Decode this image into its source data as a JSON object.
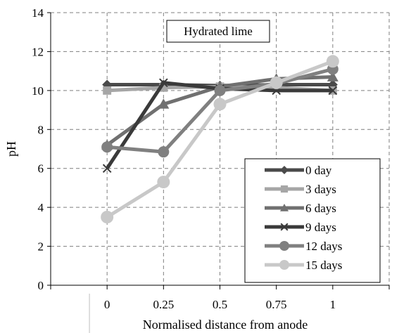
{
  "chart_data": {
    "type": "line",
    "annotation": "Hydrated lime",
    "xlabel": "Normalised distance from anode",
    "ylabel": "pH",
    "x": [
      0,
      0.25,
      0.5,
      0.75,
      1
    ],
    "x_tick_labels": [
      "0",
      "0.25",
      "0.5",
      "0.75",
      "1"
    ],
    "y_tick_labels": [
      "0",
      "2",
      "4",
      "6",
      "8",
      "10",
      "12",
      "14"
    ],
    "ylim": [
      0,
      14
    ],
    "xlim": [
      -0.25,
      1.25
    ],
    "grid": true,
    "legend_position": "bottom-right",
    "series": [
      {
        "name": "0 day",
        "color": "#4a4a4a",
        "marker": "diamond",
        "values": [
          10.3,
          10.3,
          10.25,
          10.3,
          10.3
        ]
      },
      {
        "name": "3 days",
        "color": "#a6a6a6",
        "marker": "square",
        "values": [
          10.0,
          10.15,
          10.2,
          10.15,
          10.0
        ]
      },
      {
        "name": "6 days",
        "color": "#707070",
        "marker": "triangle",
        "values": [
          7.2,
          9.3,
          10.2,
          10.6,
          10.7
        ]
      },
      {
        "name": "9 days",
        "color": "#3a3a3a",
        "marker": "x",
        "values": [
          6.0,
          10.4,
          10.1,
          10.0,
          10.0
        ]
      },
      {
        "name": "12 days",
        "color": "#808080",
        "marker": "circle",
        "values": [
          7.1,
          6.85,
          10.0,
          10.35,
          11.1
        ]
      },
      {
        "name": "15 days",
        "color": "#c8c8c8",
        "marker": "circle",
        "values": [
          3.5,
          5.3,
          9.3,
          10.4,
          11.5
        ]
      }
    ]
  }
}
